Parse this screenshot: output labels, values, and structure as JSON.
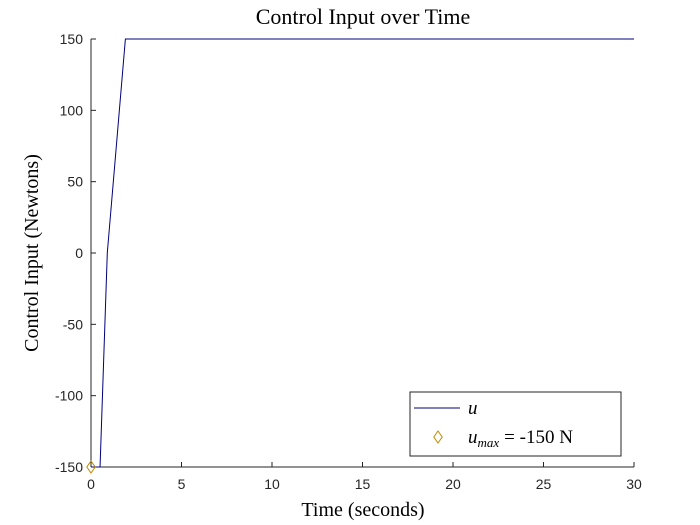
{
  "chart_data": {
    "type": "line",
    "title": "Control Input over Time",
    "x_label": "Time (seconds)",
    "y_label": "Control Input (Newtons)",
    "xlim": [
      0,
      30
    ],
    "xticks": [
      0,
      5,
      10,
      15,
      20,
      25,
      30
    ],
    "ylim": [
      -150,
      150
    ],
    "yticks": [
      -150,
      -100,
      -50,
      0,
      50,
      100,
      150
    ],
    "grid": false,
    "legend": "southeast",
    "series": [
      {
        "name": "u",
        "color": "#00007f",
        "style": "line",
        "x": [
          0,
          0.5,
          0.9,
          1.9,
          30
        ],
        "values": [
          -150,
          -150,
          0,
          150,
          150
        ]
      },
      {
        "name": "u",
        "subscript": "max",
        "name_rest": "= -150 N",
        "color": "#c08a00",
        "style": "diamond",
        "x": [
          0
        ],
        "values": [
          -150
        ]
      }
    ]
  }
}
